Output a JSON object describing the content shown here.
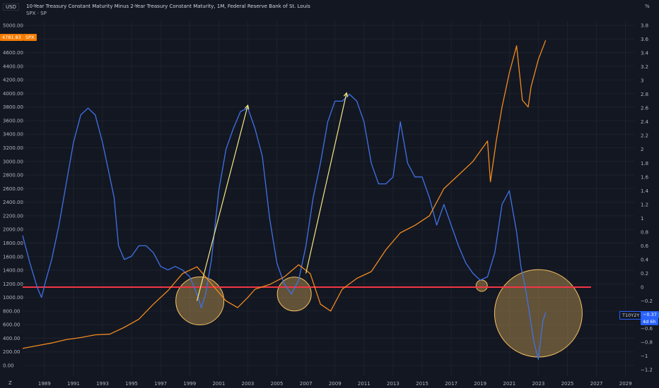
{
  "header": {
    "currency": "USD",
    "title": "10-Year Treasury Constant Maturity Minus 2-Year Treasury Constant Maturity, 1M, Federal Reserve Bank of St. Louis",
    "subtitle": "SPX · SP",
    "right_unit": "%",
    "corner_icon": "Z"
  },
  "badges": {
    "spx_value": "4781.83",
    "spx_symbol": "SPX",
    "t10y2y_symbol": "T10Y2Y",
    "t10y2y_value": "−0.37",
    "countdown": "4d 6h"
  },
  "colors": {
    "background": "#131722",
    "spread_line": "#3f72e6",
    "spx_line": "#f18a1f",
    "zero_line": "#f23645",
    "arrow": "#f3ea84",
    "circle_fill": "#f5c060",
    "badge_blue": "#2962ff",
    "badge_orange": "#f57c00"
  },
  "chart_data": {
    "type": "line",
    "x_ticks": [
      "1989",
      "1991",
      "1993",
      "1995",
      "1997",
      "1999",
      "2001",
      "2003",
      "2005",
      "2007",
      "2009",
      "2011",
      "2013",
      "2015",
      "2017",
      "2019",
      "2021",
      "2023",
      "2025",
      "2027",
      "2029"
    ],
    "left_axis": {
      "label": "USD",
      "ylim": [
        0,
        5000
      ],
      "ticks": [
        "0.00",
        "200.00",
        "400.00",
        "600.00",
        "800.00",
        "1000.00",
        "1200.00",
        "1400.00",
        "1600.00",
        "1800.00",
        "2000.00",
        "2200.00",
        "2400.00",
        "2600.00",
        "2800.00",
        "3000.00",
        "3200.00",
        "3400.00",
        "3600.00",
        "3800.00",
        "4000.00",
        "4200.00",
        "4400.00",
        "4600.00",
        "4800.00",
        "5000.00"
      ]
    },
    "right_axis": {
      "label": "%",
      "ylim": [
        -1.2,
        3.8
      ],
      "ticks": [
        "−1.2",
        "−1",
        "−0.8",
        "−0.6",
        "−0.4",
        "−0.2",
        "0",
        "0.2",
        "0.4",
        "0.6",
        "0.8",
        "1",
        "1.2",
        "1.4",
        "1.6",
        "1.8",
        "2",
        "2.2",
        "2.4",
        "2.6",
        "2.8",
        "3",
        "3.2",
        "3.4",
        "3.6",
        "3.8"
      ]
    },
    "series": [
      {
        "name": "T10Y2Y",
        "axis": "right",
        "x": [
          1988.0,
          1988.5,
          1989.0,
          1989.3,
          1989.6,
          1990.0,
          1990.5,
          1991.0,
          1991.5,
          1992.0,
          1992.5,
          1993.0,
          1993.5,
          1994.0,
          1994.3,
          1994.6,
          1995.0,
          1995.5,
          1996.0,
          1996.5,
          1997.0,
          1997.5,
          1998.0,
          1998.5,
          1999.0,
          1999.5,
          2000.0,
          2000.3,
          2000.6,
          2001.0,
          2001.5,
          2002.0,
          2002.5,
          2003.0,
          2003.5,
          2004.0,
          2004.5,
          2005.0,
          2005.5,
          2006.0,
          2006.5,
          2007.0,
          2007.5,
          2008.0,
          2008.5,
          2009.0,
          2009.5,
          2010.0,
          2010.5,
          2011.0,
          2011.5,
          2012.0,
          2012.5,
          2013.0,
          2013.5,
          2014.0,
          2014.5,
          2015.0,
          2015.5,
          2016.0,
          2016.5,
          2017.0,
          2017.5,
          2018.0,
          2018.5,
          2019.0,
          2019.5,
          2020.0,
          2020.5,
          2021.0,
          2021.5,
          2022.0,
          2022.3,
          2022.6,
          2022.9,
          2023.2,
          2023.5,
          2023.8,
          2024.0
        ],
        "values": [
          0.75,
          0.35,
          0.0,
          -0.15,
          0.1,
          0.4,
          0.9,
          1.5,
          2.1,
          2.5,
          2.6,
          2.5,
          2.1,
          1.6,
          1.3,
          0.6,
          0.4,
          0.45,
          0.6,
          0.6,
          0.5,
          0.3,
          0.25,
          0.3,
          0.25,
          0.15,
          -0.1,
          -0.3,
          -0.1,
          0.4,
          1.4,
          2.0,
          2.3,
          2.55,
          2.6,
          2.3,
          1.9,
          1.0,
          0.35,
          0.05,
          -0.1,
          0.1,
          0.6,
          1.3,
          1.8,
          2.4,
          2.7,
          2.7,
          2.8,
          2.7,
          2.4,
          1.8,
          1.5,
          1.5,
          1.6,
          2.4,
          1.8,
          1.6,
          1.6,
          1.3,
          0.9,
          1.2,
          0.9,
          0.6,
          0.35,
          0.2,
          0.1,
          0.15,
          0.5,
          1.2,
          1.4,
          0.8,
          0.3,
          0.0,
          -0.4,
          -0.8,
          -1.05,
          -0.5,
          -0.37
        ]
      },
      {
        "name": "SPX",
        "axis": "left",
        "x": [
          1988.0,
          1989.0,
          1990.0,
          1991.0,
          1992.0,
          1993.0,
          1994.0,
          1995.0,
          1996.0,
          1997.0,
          1998.0,
          1999.0,
          2000.0,
          2001.0,
          2002.0,
          2002.8,
          2003.5,
          2004.0,
          2005.0,
          2006.0,
          2007.0,
          2007.8,
          2008.5,
          2009.2,
          2010.0,
          2011.0,
          2012.0,
          2013.0,
          2014.0,
          2015.0,
          2016.0,
          2017.0,
          2018.0,
          2019.0,
          2020.0,
          2020.2,
          2020.6,
          2021.0,
          2021.5,
          2022.0,
          2022.4,
          2022.8,
          2023.0,
          2023.5,
          2024.0
        ],
        "values": [
          250,
          290,
          330,
          380,
          410,
          450,
          460,
          560,
          680,
          900,
          1100,
          1350,
          1450,
          1200,
          950,
          850,
          1000,
          1120,
          1190,
          1300,
          1480,
          1350,
          900,
          800,
          1120,
          1280,
          1380,
          1700,
          1950,
          2060,
          2200,
          2600,
          2800,
          3000,
          3300,
          2700,
          3300,
          3800,
          4300,
          4700,
          3900,
          3800,
          4100,
          4500,
          4780
        ]
      }
    ],
    "annotations": [
      {
        "type": "horizontal-line",
        "value": 0
      },
      {
        "type": "arrow",
        "from": [
          2000.0,
          -0.2
        ],
        "to": [
          2003.5,
          2.64
        ]
      },
      {
        "type": "arrow",
        "from": [
          2007.5,
          0.2
        ],
        "to": [
          2010.3,
          2.82
        ]
      },
      {
        "type": "circle",
        "center": [
          2000.2,
          -0.2
        ]
      },
      {
        "type": "circle",
        "center": [
          2006.7,
          -0.1
        ]
      },
      {
        "type": "circle",
        "center": [
          2019.6,
          0.02
        ]
      },
      {
        "type": "circle",
        "center": [
          2023.5,
          -0.38
        ]
      }
    ]
  }
}
